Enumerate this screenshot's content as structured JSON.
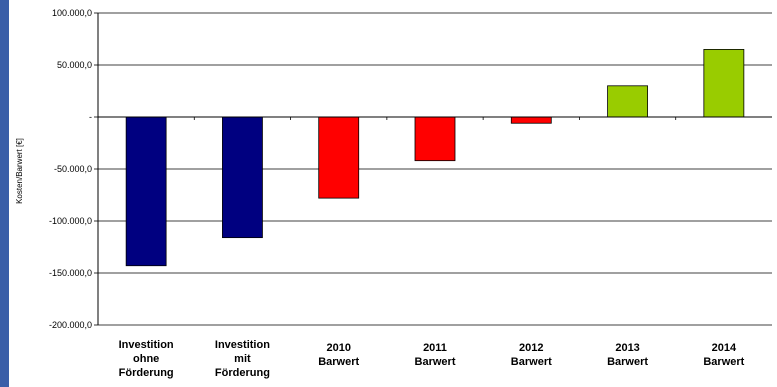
{
  "chart_data": {
    "type": "bar",
    "ylabel": "Kosten/Barwert [€]",
    "ylim": [
      -200000,
      100000
    ],
    "yticks": [
      100000,
      50000,
      0,
      -50000,
      -100000,
      -150000,
      -200000
    ],
    "ytick_labels": [
      "100.000,0",
      "50.000,0",
      "-",
      "-50.000,0",
      "-100.000,0",
      "-150.000,0",
      "-200.000,0"
    ],
    "grid": true,
    "categories": [
      [
        "Investition",
        "ohne",
        "Förderung"
      ],
      [
        "Investition",
        "mit",
        "Förderung"
      ],
      [
        "2010",
        "Barwert"
      ],
      [
        "2011",
        "Barwert"
      ],
      [
        "2012",
        "Barwert"
      ],
      [
        "2013",
        "Barwert"
      ],
      [
        "2014",
        "Barwert"
      ]
    ],
    "values": [
      -143000,
      -116000,
      -78000,
      -42000,
      -6000,
      30000,
      65000
    ],
    "colors": [
      "#000080",
      "#000080",
      "#ff0000",
      "#ff0000",
      "#ff0000",
      "#99cc00",
      "#99cc00"
    ]
  }
}
